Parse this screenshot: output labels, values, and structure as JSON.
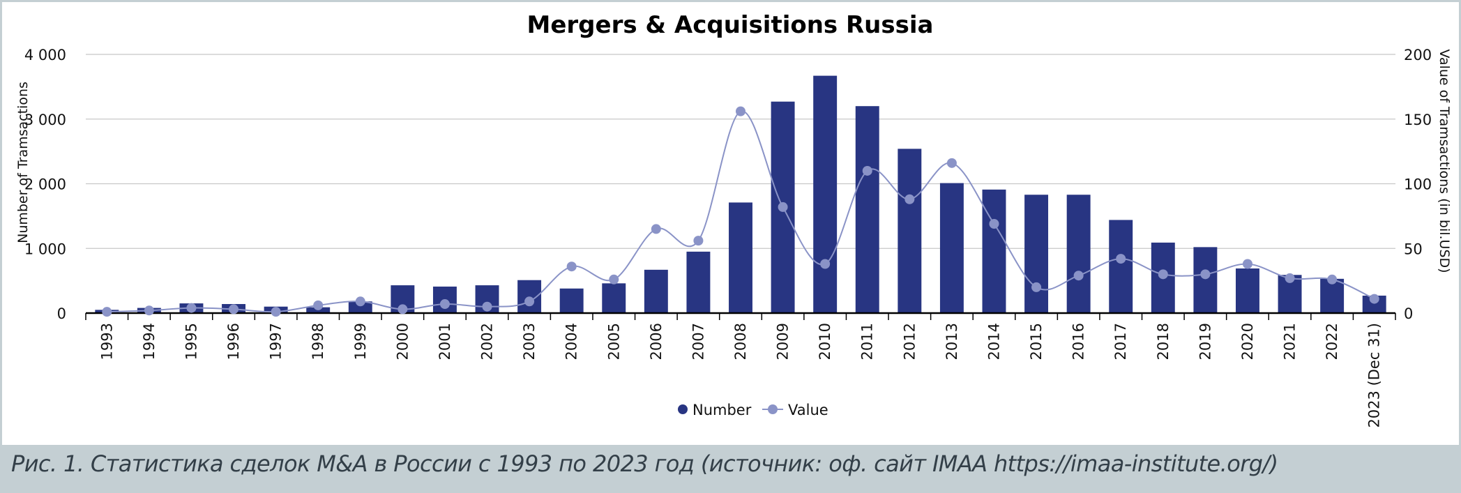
{
  "caption": "Рис. 1. Статистика сделок M&A в России с 1993 по 2023 год (источник: оф. сайт IMAA https://imaa-institute.org/)",
  "colors": {
    "bar": "#283582",
    "line": "#8a93c7",
    "axis": "#000000",
    "grid": "#c8c8c8"
  },
  "chart_data": {
    "type": "bar",
    "title": "Mergers & Acquisitions Russia",
    "ylabel": "Number of Tramsactions",
    "y2label": "Value of Tramsactions (in bil.USD)",
    "ylim": [
      0,
      4000
    ],
    "y2lim": [
      0,
      200
    ],
    "yticks": [
      "0",
      "1 000",
      "2 000",
      "3 000",
      "4 000"
    ],
    "y2ticks": [
      "0",
      "50",
      "100",
      "150",
      "200"
    ],
    "grid": true,
    "legend_position": "bottom-center",
    "categories": [
      "1993",
      "1994",
      "1995",
      "1996",
      "1997",
      "1998",
      "1999",
      "2000",
      "2001",
      "2002",
      "2003",
      "2004",
      "2005",
      "2006",
      "2007",
      "2008",
      "2009",
      "2010",
      "2011",
      "2012",
      "2013",
      "2014",
      "2015",
      "2016",
      "2017",
      "2018",
      "2019",
      "2020",
      "2021",
      "2022",
      "2023 (Dec 31)"
    ],
    "series": [
      {
        "name": "Number",
        "type": "bar",
        "axis": "left",
        "values": [
          50,
          80,
          150,
          140,
          100,
          90,
          180,
          430,
          410,
          430,
          510,
          380,
          460,
          670,
          950,
          1710,
          3270,
          3670,
          3200,
          2540,
          2010,
          1910,
          1830,
          1830,
          1440,
          1090,
          1020,
          690,
          590,
          530,
          270
        ]
      },
      {
        "name": "Value",
        "type": "line",
        "axis": "right",
        "values": [
          1,
          2,
          4,
          3,
          1,
          6,
          9,
          3,
          7,
          5,
          9,
          36,
          26,
          65,
          56,
          156,
          82,
          38,
          110,
          88,
          116,
          69,
          20,
          29,
          42,
          30,
          30,
          38,
          27,
          26,
          11
        ]
      }
    ]
  }
}
